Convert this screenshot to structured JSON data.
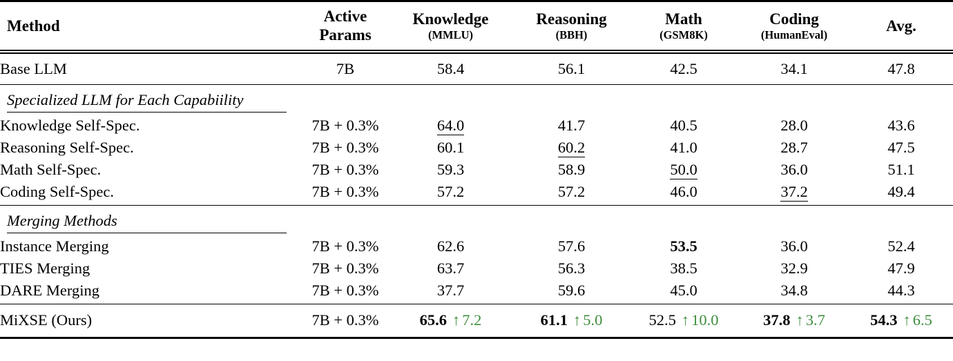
{
  "accent_green": "#3e8e3e",
  "header": {
    "method": "Method",
    "active_line1": "Active",
    "active_line2": "Params",
    "knowledge": "Knowledge",
    "knowledge_sub": "(MMLU)",
    "reasoning": "Reasoning",
    "reasoning_sub": "(BBH)",
    "math": "Math",
    "math_sub": "(GSM8K)",
    "coding": "Coding",
    "coding_sub": "(HumanEval)",
    "avg": "Avg."
  },
  "sections": {
    "specialized": "Specialized LLM for Each Capabiility",
    "merging": "Merging Methods"
  },
  "rows": {
    "base": {
      "method": "Base LLM",
      "params": "7B",
      "knowledge": "58.4",
      "reasoning": "56.1",
      "math": "42.5",
      "coding": "34.1",
      "avg": "47.8"
    },
    "knowledge_spec": {
      "method": "Knowledge Self-Spec.",
      "params": "7B + 0.3%",
      "knowledge": "64.0",
      "reasoning": "41.7",
      "math": "40.5",
      "coding": "28.0",
      "avg": "43.6"
    },
    "reasoning_spec": {
      "method": "Reasoning Self-Spec.",
      "params": "7B + 0.3%",
      "knowledge": "60.1",
      "reasoning": "60.2",
      "math": "41.0",
      "coding": "28.7",
      "avg": "47.5"
    },
    "math_spec": {
      "method": "Math Self-Spec.",
      "params": "7B + 0.3%",
      "knowledge": "59.3",
      "reasoning": "58.9",
      "math": "50.0",
      "coding": "36.0",
      "avg": "51.1"
    },
    "coding_spec": {
      "method": "Coding Self-Spec.",
      "params": "7B + 0.3%",
      "knowledge": "57.2",
      "reasoning": "57.2",
      "math": "46.0",
      "coding": "37.2",
      "avg": "49.4"
    },
    "instance": {
      "method": "Instance Merging",
      "params": "7B + 0.3%",
      "knowledge": "62.6",
      "reasoning": "57.6",
      "math": "53.5",
      "coding": "36.0",
      "avg": "52.4"
    },
    "ties": {
      "method": "TIES Merging",
      "params": "7B + 0.3%",
      "knowledge": "63.7",
      "reasoning": "56.3",
      "math": "38.5",
      "coding": "32.9",
      "avg": "47.9"
    },
    "dare": {
      "method": "DARE Merging",
      "params": "7B + 0.3%",
      "knowledge": "37.7",
      "reasoning": "59.6",
      "math": "45.0",
      "coding": "34.8",
      "avg": "44.3"
    },
    "mixse": {
      "method": "MiXSE (Ours)",
      "params": "7B + 0.3%",
      "knowledge": "65.6",
      "knowledge_delta": "7.2",
      "reasoning": "61.1",
      "reasoning_delta": "5.0",
      "math": "52.5",
      "math_delta": "10.0",
      "coding": "37.8",
      "coding_delta": "3.7",
      "avg": "54.3",
      "avg_delta": "6.5",
      "up_arrow": "↑"
    }
  }
}
